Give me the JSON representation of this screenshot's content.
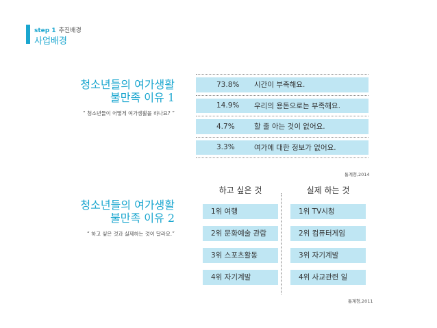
{
  "header": {
    "step_number": "step 1",
    "step_label": "추진배경",
    "section_title": "사업배경"
  },
  "section1": {
    "title_line1": "청소년들의  여가생활",
    "title_line2": "불만족   이유 1",
    "quote": "“ 청소년들이 어떻게 여가생활을 하나요? ”",
    "rows": [
      {
        "percent": "73.8%",
        "reason": "시간이 부족해요."
      },
      {
        "percent": "14.9%",
        "reason": "우리의  용돈으로는 부족해요."
      },
      {
        "percent": "4.7%",
        "reason": "할 줄 아는 것이 없어요."
      },
      {
        "percent": "3.3%",
        "reason": "여가에 대한 정보가 없어요."
      }
    ],
    "source": "통계청,2014"
  },
  "section2": {
    "title_line1": "청소년들의  여가생활",
    "title_line2": "불만족   이유 2",
    "quote": "“ 하고 싶은 것과 실제하는 것이 달라요.”",
    "col_want": "하고 싶은 것",
    "col_actual": "실제 하는 것",
    "want": [
      "1위 여행",
      "2위 문화예술 관람",
      "3위 스포츠활동",
      "4위 자기계발"
    ],
    "actual": [
      "1위 TV시청",
      "2위 컴퓨터게임",
      "3위 자기계발",
      "4위 사교관련 일"
    ],
    "source": "통계청,2011"
  },
  "colors": {
    "accent": "#1aa6cf",
    "bar_fill": "#bfe6f3",
    "text": "#333333"
  }
}
